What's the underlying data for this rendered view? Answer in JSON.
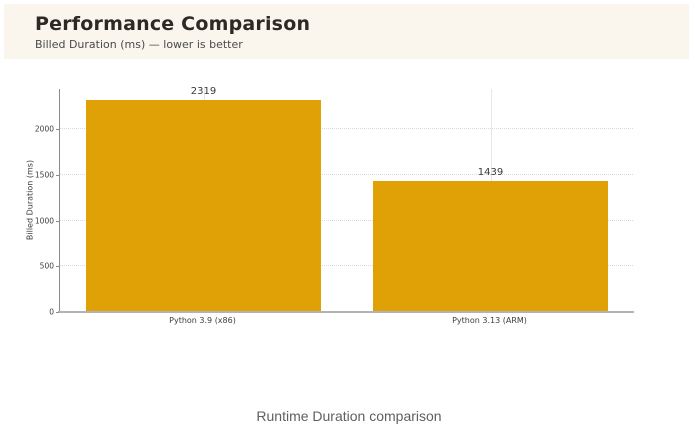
{
  "header": {
    "title": "Performance Comparison",
    "subtitle": "Billed Duration (ms) — lower is better",
    "band_color": "#faf6ed"
  },
  "chart_data": {
    "type": "bar",
    "title": "",
    "categories": [
      "Python 3.9 (x86)",
      "Python 3.13 (ARM)"
    ],
    "values": [
      2319,
      1439
    ],
    "value_labels": [
      "2319",
      "1439"
    ],
    "xlabel": "",
    "ylabel": "Billed Duration (ms)",
    "yticks": [
      0,
      500,
      1000,
      1500,
      2000
    ],
    "ylim": [
      0,
      2440
    ],
    "bar_color": "#e0a106",
    "grid": true,
    "legend": "none",
    "lower_is_better": true
  },
  "caption": {
    "text": "Runtime Duration comparison"
  }
}
